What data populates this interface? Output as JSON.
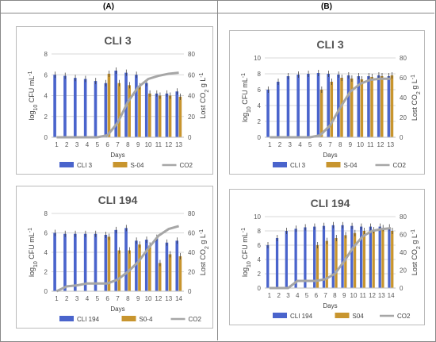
{
  "panels": {
    "left": "(A)",
    "right": "(B)"
  },
  "chart_data": [
    {
      "type": "bar",
      "title": "CLI 3",
      "xlabel": "Days",
      "ylabel": "log10 CFU mL-1",
      "y2label": "Lost CO2 g L-1",
      "ylim": [
        0,
        8
      ],
      "yticks": [
        0,
        2,
        4,
        6,
        8
      ],
      "y2lim": [
        0,
        80
      ],
      "y2ticks": [
        0,
        20,
        40,
        60,
        80
      ],
      "categories": [
        "1",
        "2",
        "3",
        "4",
        "5",
        "6",
        "7",
        "8",
        "9",
        "10",
        "11",
        "12",
        "13"
      ],
      "series": [
        {
          "name": "CLI 3",
          "color": "#4a64cc",
          "values": [
            6.0,
            5.9,
            5.7,
            5.6,
            5.4,
            5.2,
            6.4,
            6.2,
            6.0,
            5.2,
            4.2,
            4.2,
            4.4
          ]
        },
        {
          "name": "S-04",
          "color": "#c8952e",
          "values": [
            null,
            null,
            null,
            null,
            null,
            6.1,
            5.2,
            5.0,
            4.9,
            4.2,
            4.0,
            4.0,
            3.9
          ]
        },
        {
          "name": "CO2",
          "color": "#a6a6a6",
          "axis": "right",
          "type": "line",
          "values": [
            0,
            0,
            0,
            0,
            0,
            2,
            14,
            34,
            48,
            56,
            59,
            61,
            62
          ]
        }
      ],
      "grid": true,
      "legend": "bottom"
    },
    {
      "type": "bar",
      "title": "CLI 3",
      "xlabel": "Days",
      "ylabel": "log10 CFU mL-1",
      "y2label": "Lost CO2 g L-1",
      "ylim": [
        0,
        10
      ],
      "yticks": [
        0,
        2,
        4,
        6,
        8,
        10
      ],
      "y2lim": [
        0,
        80
      ],
      "y2ticks": [
        0,
        20,
        40,
        60,
        80
      ],
      "categories": [
        "1",
        "2",
        "3",
        "4",
        "5",
        "6",
        "7",
        "8",
        "9",
        "10",
        "11",
        "12",
        "13"
      ],
      "series": [
        {
          "name": "CLI 3",
          "color": "#4a64cc",
          "values": [
            6.0,
            7.0,
            7.7,
            7.9,
            8.0,
            8.1,
            8.0,
            7.9,
            7.8,
            7.7,
            7.7,
            7.8,
            7.7
          ]
        },
        {
          "name": "S-04",
          "color": "#c8952e",
          "values": [
            null,
            null,
            null,
            null,
            null,
            6.0,
            7.0,
            7.5,
            7.4,
            7.3,
            7.6,
            7.7,
            7.8
          ]
        },
        {
          "name": "CO2",
          "color": "#a6a6a6",
          "axis": "right",
          "type": "line",
          "values": [
            0,
            0,
            0,
            0,
            0,
            2,
            12,
            30,
            46,
            54,
            58,
            59,
            59
          ]
        }
      ],
      "grid": true,
      "legend": "bottom"
    },
    {
      "type": "bar",
      "title": "CLI 194",
      "xlabel": "Days",
      "ylabel": "log10 CFU mL-1",
      "y2label": "Lost CO2 g L-1",
      "ylim": [
        0,
        8
      ],
      "yticks": [
        0,
        2,
        4,
        6,
        8
      ],
      "y2lim": [
        0,
        80
      ],
      "y2ticks": [
        0,
        20,
        40,
        60,
        80
      ],
      "categories": [
        "1",
        "2",
        "3",
        "4",
        "5",
        "6",
        "7",
        "8",
        "9",
        "10",
        "12",
        "13",
        "14"
      ],
      "series": [
        {
          "name": "CLI 194",
          "color": "#4a64cc",
          "values": [
            6.0,
            5.9,
            5.9,
            5.9,
            5.9,
            5.8,
            6.3,
            6.5,
            5.2,
            5.3,
            5.5,
            5.0,
            5.2
          ]
        },
        {
          "name": "S0-4",
          "color": "#c8952e",
          "values": [
            null,
            null,
            null,
            null,
            null,
            5.6,
            4.2,
            4.2,
            4.8,
            4.7,
            2.9,
            3.8,
            3.6
          ]
        },
        {
          "name": "CO2",
          "color": "#a6a6a6",
          "axis": "right",
          "type": "line",
          "values": [
            0,
            5,
            6,
            8,
            8,
            8,
            12,
            20,
            30,
            44,
            57,
            64,
            67
          ]
        }
      ],
      "grid": true,
      "legend": "bottom"
    },
    {
      "type": "bar",
      "title": "CLI 194",
      "xlabel": "Days",
      "ylabel": "log10 CFU mL-1",
      "y2label": "Lost CO2 g L-1",
      "ylim": [
        0,
        10
      ],
      "yticks": [
        0,
        2,
        4,
        6,
        8,
        10
      ],
      "y2lim": [
        0,
        80
      ],
      "y2ticks": [
        0,
        20,
        40,
        60,
        80
      ],
      "categories": [
        "1",
        "2",
        "3",
        "4",
        "5",
        "6",
        "7",
        "8",
        "9",
        "10",
        "11",
        "12",
        "13",
        "14"
      ],
      "series": [
        {
          "name": "CLI 194",
          "color": "#4a64cc",
          "values": [
            6.0,
            7.0,
            8.0,
            8.3,
            8.5,
            8.6,
            8.7,
            8.8,
            8.8,
            8.7,
            8.6,
            8.6,
            8.6,
            8.5
          ]
        },
        {
          "name": "S04",
          "color": "#c8952e",
          "values": [
            null,
            null,
            null,
            null,
            null,
            6.0,
            6.6,
            7.0,
            7.4,
            7.7,
            8.0,
            8.1,
            8.4,
            8.0
          ]
        },
        {
          "name": "CO2",
          "color": "#a6a6a6",
          "axis": "right",
          "type": "line",
          "values": [
            0,
            0,
            0,
            8,
            8,
            8,
            10,
            16,
            30,
            46,
            58,
            64,
            66,
            67
          ]
        }
      ],
      "grid": true,
      "legend": "bottom"
    }
  ]
}
